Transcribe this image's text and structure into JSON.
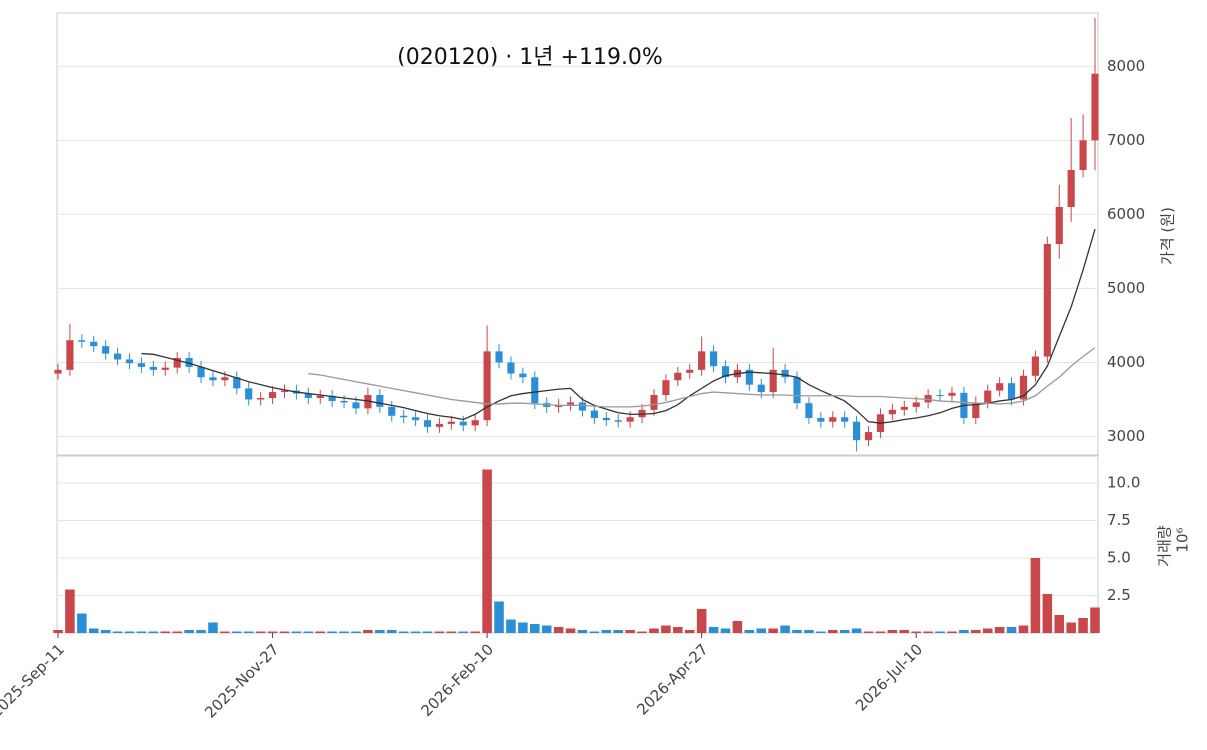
{
  "chart_data": {
    "type": "candlestick",
    "title": "(020120)  ·  1년 +119.0%",
    "categories": [
      "2025-Sep-11",
      null,
      null,
      null,
      null,
      null,
      null,
      null,
      null,
      null,
      null,
      null,
      null,
      null,
      null,
      null,
      null,
      null,
      "2025-Nov-27",
      null,
      null,
      null,
      null,
      null,
      null,
      null,
      null,
      null,
      null,
      null,
      null,
      null,
      null,
      null,
      null,
      null,
      "2026-Feb-10",
      null,
      null,
      null,
      null,
      null,
      null,
      null,
      null,
      null,
      null,
      null,
      null,
      null,
      null,
      null,
      null,
      null,
      "2026-Apr-27",
      null,
      null,
      null,
      null,
      null,
      null,
      null,
      null,
      null,
      null,
      null,
      null,
      null,
      null,
      null,
      null,
      null,
      "2026-Jul-10",
      null,
      null,
      null,
      null,
      null,
      null,
      null,
      null,
      null,
      null,
      null,
      null,
      null,
      null,
      null
    ],
    "open": [
      3850,
      3900,
      4300,
      4280,
      4220,
      4120,
      4040,
      3990,
      3940,
      3900,
      3930,
      4060,
      3940,
      3800,
      3760,
      3800,
      3650,
      3500,
      3520,
      3600,
      3620,
      3580,
      3520,
      3550,
      3480,
      3460,
      3380,
      3560,
      3400,
      3280,
      3260,
      3220,
      3130,
      3170,
      3200,
      3150,
      3220,
      4150,
      4000,
      3850,
      3800,
      3450,
      3400,
      3430,
      3460,
      3350,
      3250,
      3220,
      3200,
      3260,
      3360,
      3560,
      3760,
      3860,
      3900,
      4150,
      3950,
      3800,
      3900,
      3700,
      3600,
      3900,
      3800,
      3450,
      3250,
      3200,
      3260,
      3200,
      2950,
      3060,
      3300,
      3360,
      3400,
      3460,
      3560,
      3550,
      3590,
      3250,
      3460,
      3620,
      3720,
      3500,
      3820,
      4080,
      5600,
      6100,
      6600,
      7000
    ],
    "high": [
      3980,
      4520,
      4380,
      4360,
      4300,
      4200,
      4120,
      4070,
      4020,
      4010,
      4140,
      4140,
      4020,
      3880,
      3880,
      3880,
      3730,
      3600,
      3680,
      3700,
      3700,
      3660,
      3630,
      3630,
      3560,
      3540,
      3660,
      3640,
      3480,
      3360,
      3340,
      3300,
      3250,
      3280,
      3280,
      3300,
      4500,
      4250,
      4080,
      3930,
      3880,
      3530,
      3510,
      3540,
      3540,
      3430,
      3330,
      3300,
      3340,
      3440,
      3640,
      3840,
      3940,
      3980,
      4350,
      4230,
      4030,
      3980,
      3980,
      3780,
      4200,
      3980,
      3880,
      3530,
      3330,
      3340,
      3340,
      3280,
      3140,
      3380,
      3440,
      3480,
      3540,
      3640,
      3640,
      3670,
      3670,
      3540,
      3700,
      3800,
      3800,
      3900,
      4160,
      5700,
      6400,
      7300,
      7350,
      8650
    ],
    "low": [
      3770,
      3820,
      4200,
      4140,
      4040,
      3960,
      3910,
      3860,
      3820,
      3820,
      3850,
      3860,
      3720,
      3680,
      3680,
      3570,
      3420,
      3420,
      3440,
      3520,
      3500,
      3440,
      3440,
      3400,
      3380,
      3300,
      3300,
      3320,
      3200,
      3180,
      3140,
      3050,
      3050,
      3090,
      3070,
      3070,
      3140,
      3920,
      3770,
      3720,
      3370,
      3320,
      3320,
      3350,
      3270,
      3170,
      3140,
      3120,
      3120,
      3180,
      3280,
      3480,
      3680,
      3780,
      3820,
      3870,
      3720,
      3720,
      3620,
      3520,
      3520,
      3720,
      3370,
      3170,
      3120,
      3120,
      3120,
      2800,
      2870,
      2980,
      3220,
      3280,
      3320,
      3380,
      3470,
      3470,
      3170,
      3170,
      3380,
      3540,
      3420,
      3420,
      3740,
      4000,
      5400,
      5900,
      6500,
      6600
    ],
    "close": [
      3900,
      4300,
      4280,
      4220,
      4120,
      4040,
      3990,
      3940,
      3900,
      3930,
      4060,
      3940,
      3800,
      3760,
      3800,
      3650,
      3500,
      3520,
      3600,
      3620,
      3580,
      3520,
      3550,
      3480,
      3460,
      3380,
      3560,
      3400,
      3280,
      3260,
      3220,
      3130,
      3170,
      3200,
      3150,
      3220,
      4150,
      4000,
      3850,
      3800,
      3450,
      3400,
      3430,
      3460,
      3350,
      3250,
      3220,
      3200,
      3260,
      3360,
      3560,
      3760,
      3860,
      3900,
      4150,
      3950,
      3800,
      3900,
      3700,
      3600,
      3900,
      3800,
      3450,
      3250,
      3200,
      3260,
      3200,
      2950,
      3060,
      3300,
      3360,
      3400,
      3460,
      3560,
      3550,
      3590,
      3250,
      3460,
      3620,
      3720,
      3500,
      3820,
      4080,
      5600,
      6100,
      6600,
      7000,
      7900
    ],
    "up_color": "#c9474a",
    "down_color": "#2a8fd6",
    "ylim": [
      2750,
      8720
    ],
    "yticks": [
      3000,
      4000,
      5000,
      6000,
      7000,
      8000
    ],
    "ylabel": "가격 (원)",
    "grid": true,
    "lines": [
      {
        "color": "#333333",
        "values": [
          null,
          null,
          null,
          null,
          null,
          null,
          null,
          4120,
          4110,
          4070,
          4030,
          3990,
          3940,
          3890,
          3840,
          3790,
          3740,
          3700,
          3660,
          3630,
          3600,
          3580,
          3560,
          3540,
          3520,
          3500,
          3480,
          3450,
          3420,
          3390,
          3350,
          3310,
          3280,
          3260,
          3230,
          3300,
          3400,
          3480,
          3550,
          3580,
          3600,
          3620,
          3640,
          3650,
          3500,
          3420,
          3370,
          3320,
          3300,
          3300,
          3310,
          3350,
          3430,
          3550,
          3650,
          3750,
          3820,
          3850,
          3870,
          3860,
          3850,
          3830,
          3800,
          3700,
          3620,
          3550,
          3480,
          3350,
          3200,
          3180,
          3200,
          3230,
          3250,
          3280,
          3320,
          3380,
          3420,
          3430,
          3450,
          3480,
          3500,
          3550,
          3700,
          3950,
          4350,
          4750,
          5250,
          5800
        ]
      },
      {
        "color": "#999999",
        "values": [
          null,
          null,
          null,
          null,
          null,
          null,
          null,
          null,
          null,
          null,
          null,
          null,
          null,
          null,
          null,
          null,
          null,
          null,
          null,
          null,
          null,
          3850,
          3830,
          3800,
          3770,
          3740,
          3710,
          3680,
          3650,
          3620,
          3590,
          3560,
          3530,
          3500,
          3480,
          3460,
          3440,
          3440,
          3450,
          3450,
          3440,
          3430,
          3420,
          3420,
          3420,
          3410,
          3400,
          3400,
          3400,
          3410,
          3430,
          3460,
          3500,
          3540,
          3580,
          3600,
          3590,
          3580,
          3570,
          3560,
          3560,
          3560,
          3550,
          3550,
          3550,
          3550,
          3550,
          3540,
          3540,
          3540,
          3530,
          3520,
          3510,
          3500,
          3480,
          3470,
          3460,
          3450,
          3450,
          3440,
          3450,
          3480,
          3550,
          3680,
          3800,
          3950,
          4080,
          4200
        ]
      }
    ],
    "volume": {
      "values": [
        0.2,
        2.9,
        1.3,
        0.3,
        0.2,
        0.1,
        0.1,
        0.1,
        0.1,
        0.1,
        0.1,
        0.2,
        0.2,
        0.7,
        0.1,
        0.1,
        0.1,
        0.1,
        0.1,
        0.1,
        0.1,
        0.1,
        0.1,
        0.1,
        0.1,
        0.1,
        0.2,
        0.2,
        0.2,
        0.1,
        0.1,
        0.1,
        0.1,
        0.1,
        0.1,
        0.1,
        10.9,
        2.1,
        0.9,
        0.7,
        0.6,
        0.5,
        0.4,
        0.3,
        0.2,
        0.1,
        0.2,
        0.2,
        0.2,
        0.1,
        0.3,
        0.5,
        0.4,
        0.2,
        1.6,
        0.4,
        0.3,
        0.8,
        0.2,
        0.3,
        0.3,
        0.5,
        0.2,
        0.2,
        0.1,
        0.2,
        0.2,
        0.3,
        0.1,
        0.1,
        0.2,
        0.2,
        0.1,
        0.1,
        0.1,
        0.1,
        0.2,
        0.2,
        0.3,
        0.4,
        0.4,
        0.5,
        5.0,
        2.6,
        1.2,
        0.7,
        1.0,
        1.7
      ],
      "ylim": [
        0,
        11.8
      ],
      "yticks": [
        2.5,
        {
          "value": 5,
          "label": "5.0"
        },
        {
          "value": 7.5,
          "label": "7.5"
        },
        {
          "value": 10,
          "label": "10.0"
        }
      ],
      "ylabel": "거래량",
      "unit": "10⁶"
    }
  }
}
